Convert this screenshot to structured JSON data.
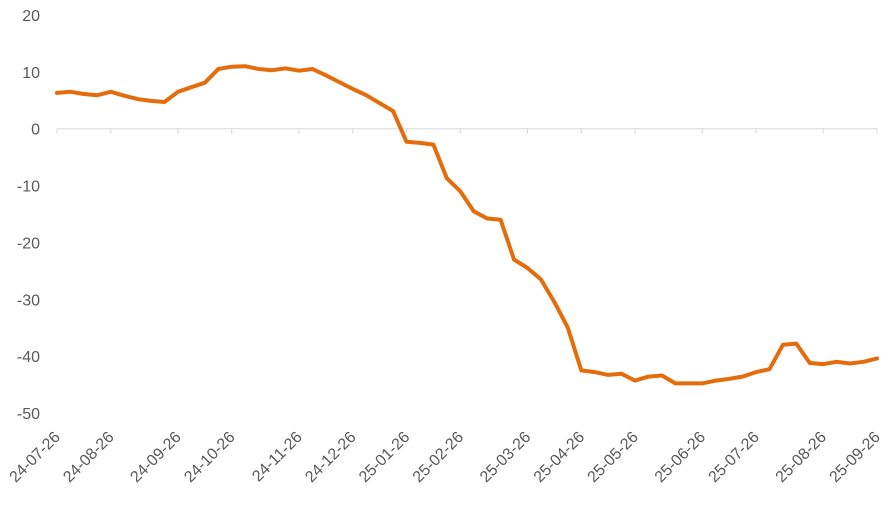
{
  "chart_data": {
    "type": "line",
    "categories": [
      "24-07-26",
      null,
      null,
      null,
      "24-08-26",
      null,
      null,
      null,
      null,
      "24-09-26",
      null,
      null,
      null,
      "24-10-26",
      null,
      null,
      null,
      null,
      "24-11-26",
      null,
      null,
      null,
      "24-12-26",
      null,
      null,
      null,
      "25-01-26",
      null,
      null,
      null,
      "25-02-26",
      null,
      null,
      null,
      null,
      "25-03-26",
      null,
      null,
      null,
      "25-04-26",
      null,
      null,
      null,
      "25-05-26",
      null,
      null,
      null,
      null,
      "25-06-26",
      null,
      null,
      null,
      "25-07-26",
      null,
      null,
      null,
      null,
      "25-08-26",
      null,
      null,
      null,
      "25-09-26"
    ],
    "series": [
      {
        "color": "#e46c0a",
        "values": [
          6.3,
          6.5,
          6.1,
          5.9,
          6.5,
          5.8,
          5.2,
          4.9,
          4.7,
          6.5,
          7.3,
          8.1,
          10.5,
          10.9,
          11.0,
          10.5,
          10.3,
          10.6,
          10.2,
          10.5,
          9.4,
          8.2,
          7.0,
          5.9,
          4.5,
          3.1,
          -2.3,
          -2.5,
          -2.8,
          -8.7,
          -11,
          -14.5,
          -15.8,
          -16,
          -23,
          -24.5,
          -26.5,
          -30.5,
          -35,
          -42.5,
          -42.8,
          -43.3,
          -43.1,
          -44.3,
          -43.6,
          -43.4,
          -44.8,
          -44.8,
          -44.8,
          -44.3,
          -44,
          -43.6,
          -42.8,
          -42.3,
          -38,
          -37.8,
          -41.2,
          -41.4,
          -41,
          -41.3,
          -41,
          -40.4
        ]
      }
    ],
    "ylim": [
      -50,
      20
    ],
    "yticks": [
      -50,
      -40,
      -30,
      -20,
      -10,
      0,
      10,
      20
    ],
    "grid": false
  }
}
